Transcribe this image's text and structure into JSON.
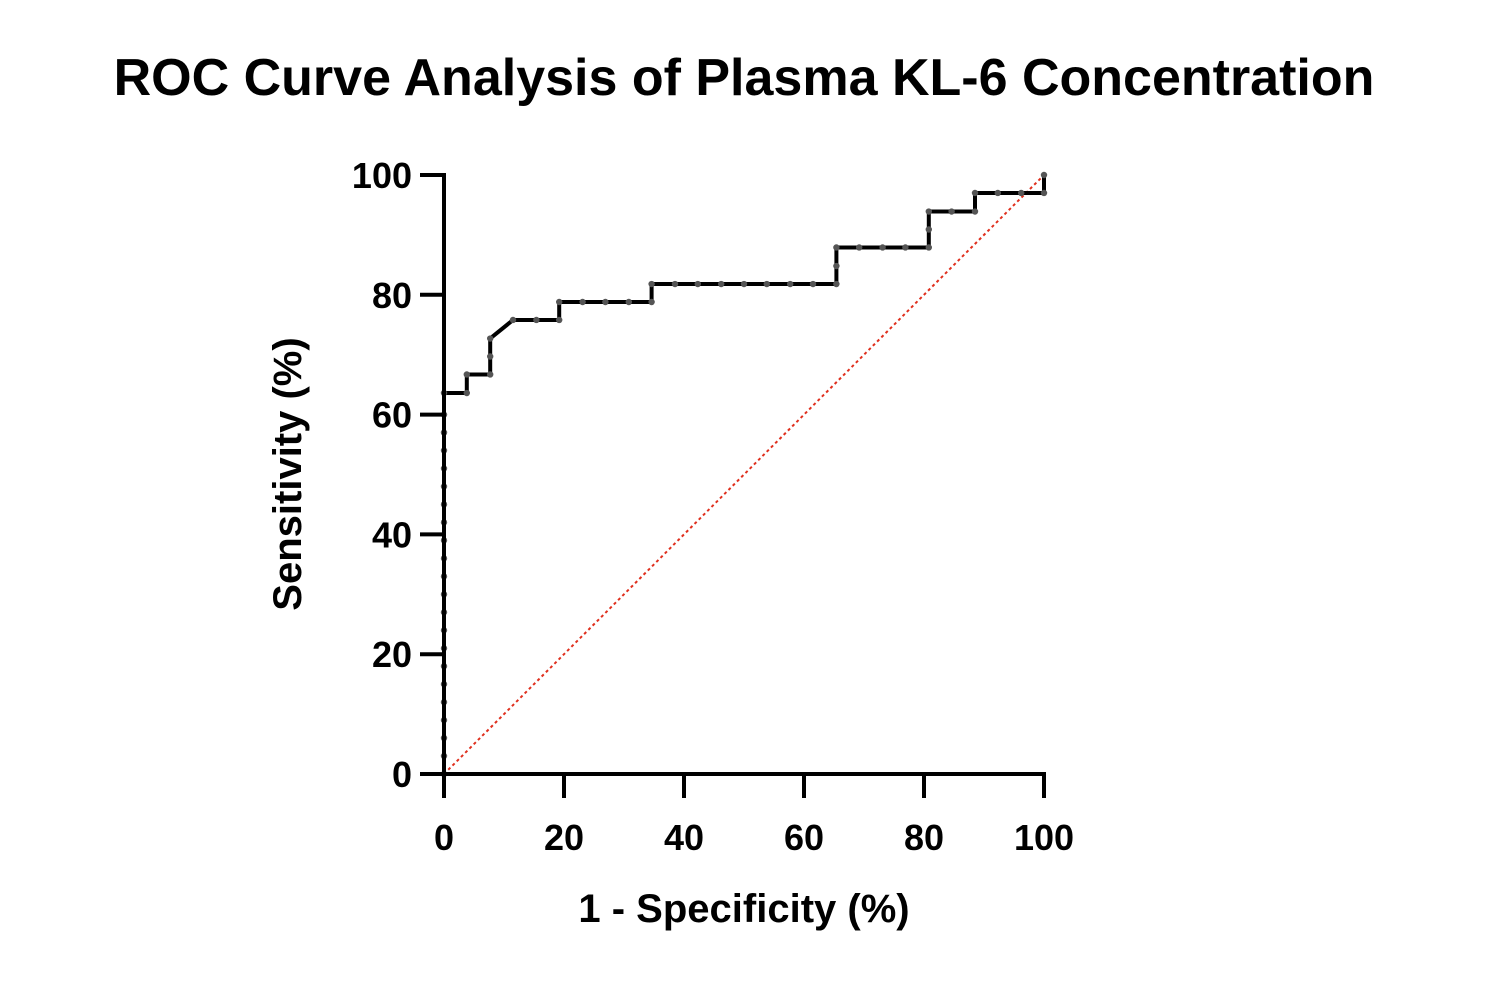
{
  "chart_data": {
    "type": "line",
    "title": "ROC Curve Analysis of Plasma KL-6 Concentration",
    "xlabel": "1 - Specificity (%)",
    "ylabel": "Sensitivity (%)",
    "xlim": [
      0,
      100
    ],
    "ylim": [
      0,
      100
    ],
    "x_ticks": [
      0,
      20,
      40,
      60,
      80,
      100
    ],
    "y_ticks": [
      0,
      20,
      40,
      60,
      80,
      100
    ],
    "x_tick_labels": [
      "0",
      "20",
      "40",
      "60",
      "80",
      "100"
    ],
    "y_tick_labels": [
      "0",
      "20",
      "40",
      "60",
      "80",
      "100"
    ],
    "grid": false,
    "legend": "none",
    "series": [
      {
        "style": "step",
        "color": "#000000",
        "marker_color": "#555555",
        "points": [
          [
            0,
            0
          ],
          [
            0,
            3
          ],
          [
            0,
            6
          ],
          [
            0,
            9
          ],
          [
            0,
            12
          ],
          [
            0,
            15
          ],
          [
            0,
            18
          ],
          [
            0,
            21
          ],
          [
            0,
            24
          ],
          [
            0,
            27
          ],
          [
            0,
            30
          ],
          [
            0,
            33
          ],
          [
            0,
            36
          ],
          [
            0,
            39
          ],
          [
            0,
            42
          ],
          [
            0,
            45
          ],
          [
            0,
            48
          ],
          [
            0,
            51
          ],
          [
            0,
            54
          ],
          [
            0,
            57
          ],
          [
            0,
            60
          ],
          [
            0,
            63.6
          ],
          [
            3.8,
            63.6
          ],
          [
            3.8,
            66.7
          ],
          [
            7.7,
            66.7
          ],
          [
            7.7,
            69.7
          ],
          [
            7.7,
            72.7
          ],
          [
            11.5,
            75.8
          ],
          [
            15.4,
            75.8
          ],
          [
            19.2,
            75.8
          ],
          [
            19.2,
            78.8
          ],
          [
            23.1,
            78.8
          ],
          [
            26.9,
            78.8
          ],
          [
            30.8,
            78.8
          ],
          [
            34.6,
            78.8
          ],
          [
            34.6,
            81.8
          ],
          [
            38.5,
            81.8
          ],
          [
            42.3,
            81.8
          ],
          [
            46.2,
            81.8
          ],
          [
            50.0,
            81.8
          ],
          [
            53.8,
            81.8
          ],
          [
            57.7,
            81.8
          ],
          [
            61.5,
            81.8
          ],
          [
            65.4,
            81.8
          ],
          [
            65.4,
            84.8
          ],
          [
            65.4,
            87.9
          ],
          [
            69.2,
            87.9
          ],
          [
            73.1,
            87.9
          ],
          [
            76.9,
            87.9
          ],
          [
            80.8,
            87.9
          ],
          [
            80.8,
            90.9
          ],
          [
            80.8,
            93.9
          ],
          [
            84.6,
            93.9
          ],
          [
            88.5,
            93.9
          ],
          [
            88.5,
            97.0
          ],
          [
            92.3,
            97.0
          ],
          [
            96.2,
            97.0
          ],
          [
            100,
            97.0
          ],
          [
            100,
            100
          ]
        ]
      },
      {
        "style": "dashed",
        "color": "#e0301e",
        "points": [
          [
            0,
            0
          ],
          [
            100,
            100
          ]
        ]
      }
    ]
  }
}
